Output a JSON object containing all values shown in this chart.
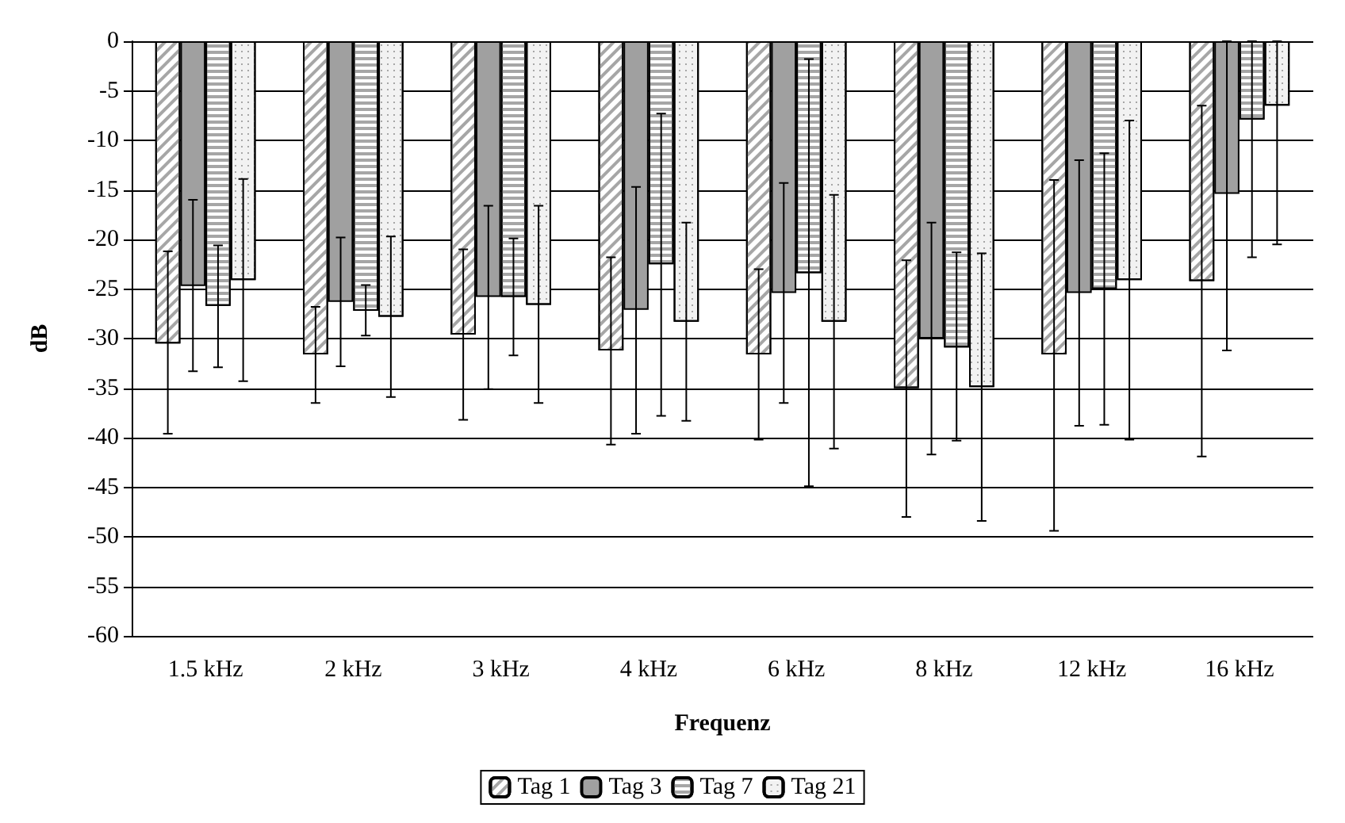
{
  "chart_data": {
    "type": "bar",
    "xlabel": "Frequenz",
    "ylabel": "dB",
    "categories": [
      "1.5 kHz",
      "2 kHz",
      "3 kHz",
      "4 kHz",
      "6 kHz",
      "8 kHz",
      "12 kHz",
      "16 kHz"
    ],
    "series": [
      {
        "name": "Tag 1",
        "color": "#ffffff",
        "values": [
          -30.5,
          -31.6,
          -29.6,
          -31.2,
          -31.6,
          -35.0,
          -31.6,
          -24.2
        ],
        "errors": [
          [
            -39.6,
            -21.2
          ],
          [
            -36.5,
            -26.8
          ],
          [
            -38.2,
            -21.0
          ],
          [
            -40.7,
            -21.8
          ],
          [
            -40.2,
            -23.0
          ],
          [
            -48.0,
            -22.1
          ],
          [
            -49.4,
            -14.0
          ],
          [
            -41.9,
            -6.5
          ]
        ]
      },
      {
        "name": "Tag 3",
        "color": "#a0a0a0",
        "values": [
          -24.7,
          -26.3,
          -25.8,
          -27.1,
          -25.4,
          -30.0,
          -25.4,
          -15.4
        ],
        "errors": [
          [
            -33.3,
            -16.0
          ],
          [
            -32.8,
            -19.8
          ],
          [
            -35.1,
            -16.6
          ],
          [
            -39.6,
            -14.7
          ],
          [
            -36.5,
            -14.3
          ],
          [
            -41.7,
            -18.3
          ],
          [
            -38.8,
            -12.0
          ],
          [
            -31.2,
            0
          ]
        ]
      },
      {
        "name": "Tag 7",
        "color": "#ffffff",
        "values": [
          -26.7,
          -27.2,
          -25.8,
          -22.5,
          -23.4,
          -30.9,
          -25.0,
          -7.9
        ],
        "errors": [
          [
            -32.9,
            -20.6
          ],
          [
            -29.7,
            -24.6
          ],
          [
            -31.7,
            -19.9
          ],
          [
            -37.8,
            -7.3
          ],
          [
            -44.9,
            -1.8
          ],
          [
            -40.3,
            -21.3
          ],
          [
            -38.7,
            -11.3
          ],
          [
            -21.8,
            0
          ]
        ]
      },
      {
        "name": "Tag 21",
        "color": "#f2f2f2",
        "values": [
          -24.1,
          -27.8,
          -26.6,
          -28.3,
          -28.3,
          -34.9,
          -24.1,
          -6.5
        ],
        "errors": [
          [
            -34.3,
            -13.9
          ],
          [
            -35.9,
            -19.7
          ],
          [
            -36.5,
            -16.6
          ],
          [
            -38.3,
            -18.3
          ],
          [
            -41.1,
            -15.5
          ],
          [
            -48.4,
            -21.4
          ],
          [
            -40.2,
            -8.0
          ],
          [
            -20.5,
            0
          ]
        ]
      }
    ],
    "ylim": [
      -60,
      0
    ],
    "yticks": [
      0,
      -5,
      -10,
      -15,
      -20,
      -25,
      -30,
      -35,
      -40,
      -45,
      -50,
      -55,
      -60
    ],
    "grid": "y",
    "legend": "bottom"
  }
}
